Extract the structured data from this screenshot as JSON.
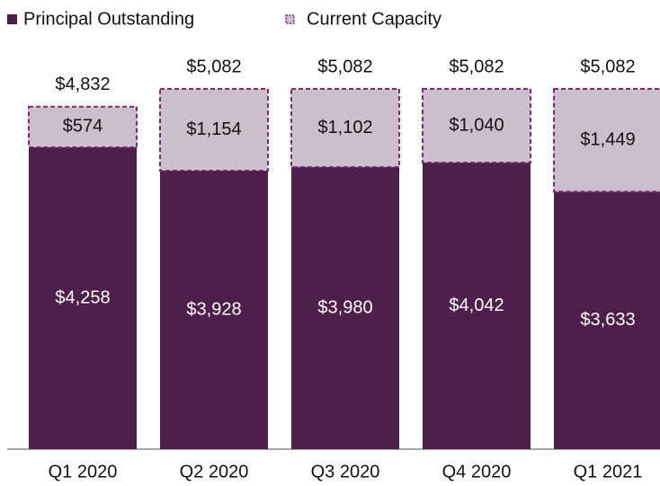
{
  "chart_data": {
    "type": "stacked_bar",
    "categories": [
      "Q1 2020",
      "Q2 2020",
      "Q3 2020",
      "Q4 2020",
      "Q1 2021"
    ],
    "series": [
      {
        "name": "Principal Outstanding",
        "color": "#4e1f4b",
        "values": [
          4258,
          3928,
          3980,
          4042,
          3633
        ],
        "value_labels": [
          "$4,258",
          "$3,928",
          "$3,980",
          "$4,042",
          "$3,633"
        ]
      },
      {
        "name": "Current Capacity",
        "color": "#cbbfcc",
        "border_color": "#7b2a7a",
        "values": [
          574,
          1154,
          1102,
          1040,
          1449
        ],
        "value_labels": [
          "$574",
          "$1,154",
          "$1,102",
          "$1,040",
          "$1,449"
        ]
      }
    ],
    "totals": [
      4832,
      5082,
      5082,
      5082,
      5082
    ],
    "totals_labels": [
      "$4,832",
      "$5,082",
      "$5,082",
      "$5,082",
      "$5,082"
    ],
    "legend": "top-left"
  }
}
